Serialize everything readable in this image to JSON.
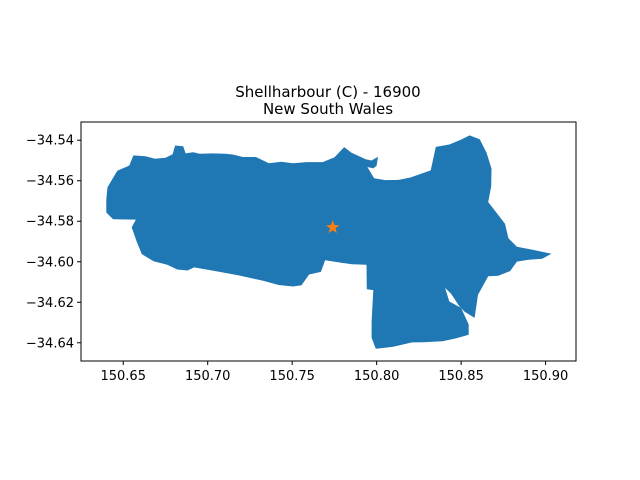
{
  "title_line1": "Shellharbour (C) - 16900",
  "title_line2": "New South Wales",
  "colors": {
    "region_fill": "#1f77b4",
    "marker": "#ff7f0e",
    "axes": "#000000"
  },
  "map": {
    "region_name": "Shellharbour (C)",
    "marker_shape": "star",
    "marker_location": {
      "lon": 150.774,
      "lat": -34.583
    }
  },
  "chart_data": {
    "type": "map",
    "xlim": [
      150.625,
      150.918
    ],
    "ylim": [
      -34.649,
      -34.531
    ],
    "xticks": [
      {
        "value": 150.65,
        "label": "150.65"
      },
      {
        "value": 150.7,
        "label": "150.70"
      },
      {
        "value": 150.75,
        "label": "150.75"
      },
      {
        "value": 150.8,
        "label": "150.80"
      },
      {
        "value": 150.85,
        "label": "150.85"
      },
      {
        "value": 150.9,
        "label": "150.90"
      }
    ],
    "yticks": [
      {
        "value": -34.54,
        "label": "−34.54"
      },
      {
        "value": -34.56,
        "label": "−34.56"
      },
      {
        "value": -34.58,
        "label": "−34.58"
      },
      {
        "value": -34.6,
        "label": "−34.60"
      },
      {
        "value": -34.62,
        "label": "−34.62"
      },
      {
        "value": -34.64,
        "label": "−34.64"
      }
    ],
    "grid": false,
    "region_outline": [
      [
        150.6407,
        -34.5632
      ],
      [
        150.6465,
        -34.5551
      ],
      [
        150.6536,
        -34.5525
      ],
      [
        150.656,
        -34.5475
      ],
      [
        150.6632,
        -34.5479
      ],
      [
        150.6688,
        -34.5491
      ],
      [
        150.675,
        -34.5487
      ],
      [
        150.6792,
        -34.5469
      ],
      [
        150.6807,
        -34.5426
      ],
      [
        150.6855,
        -34.543
      ],
      [
        150.6869,
        -34.5465
      ],
      [
        150.6915,
        -34.5459
      ],
      [
        150.6952,
        -34.5467
      ],
      [
        150.703,
        -34.5465
      ],
      [
        150.7105,
        -34.5467
      ],
      [
        150.7152,
        -34.5471
      ],
      [
        150.7208,
        -34.5483
      ],
      [
        150.7285,
        -34.5483
      ],
      [
        150.7362,
        -34.5514
      ],
      [
        150.7435,
        -34.5506
      ],
      [
        150.7505,
        -34.5514
      ],
      [
        150.7585,
        -34.5508
      ],
      [
        150.768,
        -34.5508
      ],
      [
        150.775,
        -34.5485
      ],
      [
        150.7808,
        -34.5434
      ],
      [
        150.785,
        -34.5461
      ],
      [
        150.7935,
        -34.5494
      ],
      [
        150.797,
        -34.55
      ],
      [
        150.8008,
        -34.5482
      ],
      [
        150.8,
        -34.5526
      ],
      [
        150.798,
        -34.5539
      ],
      [
        150.7945,
        -34.5532
      ],
      [
        150.7985,
        -34.5588
      ],
      [
        150.805,
        -34.5597
      ],
      [
        150.813,
        -34.5596
      ],
      [
        150.82,
        -34.5584
      ],
      [
        150.832,
        -34.5549
      ],
      [
        150.835,
        -34.5433
      ],
      [
        150.843,
        -34.5421
      ],
      [
        150.85,
        -34.5397
      ],
      [
        150.855,
        -34.5376
      ],
      [
        150.861,
        -34.5395
      ],
      [
        150.865,
        -34.5461
      ],
      [
        150.868,
        -34.554
      ],
      [
        150.8678,
        -34.5628
      ],
      [
        150.866,
        -34.5705
      ],
      [
        150.876,
        -34.5812
      ],
      [
        150.878,
        -34.5884
      ],
      [
        150.883,
        -34.5926
      ],
      [
        150.893,
        -34.5942
      ],
      [
        150.9035,
        -34.596
      ],
      [
        150.898,
        -34.5985
      ],
      [
        150.89,
        -34.599
      ],
      [
        150.883,
        -34.5999
      ],
      [
        150.879,
        -34.6046
      ],
      [
        150.872,
        -34.6069
      ],
      [
        150.866,
        -34.6072
      ],
      [
        150.86,
        -34.6163
      ],
      [
        150.858,
        -34.6277
      ],
      [
        150.852,
        -34.6246
      ],
      [
        150.849,
        -34.622
      ],
      [
        150.844,
        -34.6157
      ],
      [
        150.8405,
        -34.6129
      ],
      [
        150.843,
        -34.6196
      ],
      [
        150.85,
        -34.6228
      ],
      [
        150.8545,
        -34.631
      ],
      [
        150.8545,
        -34.636
      ],
      [
        150.8475,
        -34.6377
      ],
      [
        150.839,
        -34.6392
      ],
      [
        150.828,
        -34.6397
      ],
      [
        150.821,
        -34.6398
      ],
      [
        150.8098,
        -34.642
      ],
      [
        150.7995,
        -34.643
      ],
      [
        150.797,
        -34.6375
      ],
      [
        150.797,
        -34.6297
      ],
      [
        150.798,
        -34.614
      ],
      [
        150.7942,
        -34.6136
      ],
      [
        150.794,
        -34.6015
      ],
      [
        150.7855,
        -34.6012
      ],
      [
        150.779,
        -34.6005
      ],
      [
        150.7695,
        -34.5993
      ],
      [
        150.767,
        -34.605
      ],
      [
        150.76,
        -34.6063
      ],
      [
        150.7555,
        -34.6116
      ],
      [
        150.7505,
        -34.6122
      ],
      [
        150.742,
        -34.6115
      ],
      [
        150.7325,
        -34.6093
      ],
      [
        150.718,
        -34.6067
      ],
      [
        150.705,
        -34.6047
      ],
      [
        150.692,
        -34.6028
      ],
      [
        150.688,
        -34.6043
      ],
      [
        150.682,
        -34.6038
      ],
      [
        150.676,
        -34.6015
      ],
      [
        150.668,
        -34.5998
      ],
      [
        150.661,
        -34.5962
      ],
      [
        150.658,
        -34.5902
      ],
      [
        150.655,
        -34.583
      ],
      [
        150.6575,
        -34.5792
      ],
      [
        150.644,
        -34.579
      ],
      [
        150.64,
        -34.5757
      ],
      [
        150.64,
        -34.5692
      ]
    ]
  }
}
